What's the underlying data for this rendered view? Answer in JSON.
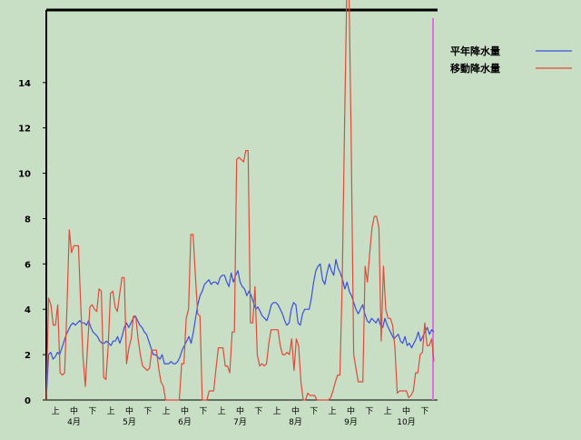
{
  "chart_data": {
    "type": "line",
    "title": "",
    "xlabel": "",
    "ylabel": "",
    "ylim": [
      0,
      17.2
    ],
    "yticks": [
      0,
      2,
      4,
      6,
      8,
      10,
      12,
      14
    ],
    "decade_labels": [
      "上",
      "中",
      "下"
    ],
    "months": [
      "4月",
      "5月",
      "6月",
      "7月",
      "8月",
      "9月",
      "10月"
    ],
    "grid": false,
    "legend_position": "top-right",
    "colors": {
      "background": "#c9dfc5",
      "axis": "#000000",
      "marker": "#e070e0"
    },
    "series": [
      {
        "name": "平年降水量",
        "color": "#3a4fe0",
        "values": [
          0,
          2.0,
          2.1,
          1.8,
          1.9,
          2.1,
          2.0,
          2.3,
          2.6,
          2.9,
          3.1,
          3.3,
          3.4,
          3.3,
          3.4,
          3.5,
          3.4,
          3.4,
          3.3,
          3.5,
          3.2,
          3.0,
          2.9,
          2.8,
          2.6,
          2.5,
          2.5,
          2.6,
          2.5,
          2.4,
          2.6,
          2.6,
          2.8,
          2.5,
          2.8,
          3.2,
          3.4,
          3.2,
          3.4,
          3.6,
          3.7,
          3.5,
          3.3,
          3.2,
          3.0,
          2.9,
          2.6,
          2.3,
          2.0,
          2.0,
          1.9,
          1.8,
          2.0,
          1.6,
          1.6,
          1.6,
          1.7,
          1.6,
          1.6,
          1.7,
          1.9,
          2.2,
          2.4,
          2.6,
          2.8,
          2.5,
          3.0,
          3.6,
          4.2,
          4.6,
          4.8,
          5.1,
          5.2,
          5.3,
          5.1,
          5.2,
          5.2,
          5.1,
          5.4,
          5.5,
          5.5,
          5.2,
          5.0,
          5.6,
          5.2,
          5.5,
          5.7,
          5.2,
          5.0,
          4.9,
          4.6,
          4.8,
          4.6,
          4.3,
          4.0,
          4.1,
          3.9,
          3.7,
          3.6,
          3.5,
          3.8,
          4.2,
          4.3,
          4.3,
          4.2,
          4.0,
          3.8,
          3.5,
          3.3,
          3.4,
          4.0,
          4.3,
          4.2,
          3.4,
          3.3,
          3.8,
          4.0,
          4.0,
          4.0,
          4.5,
          5.2,
          5.7,
          5.9,
          6.0,
          5.3,
          5.1,
          5.6,
          6.0,
          5.7,
          5.5,
          6.2,
          5.8,
          5.6,
          5.3,
          4.9,
          5.2,
          4.8,
          4.6,
          4.3,
          4.0,
          3.8,
          4.0,
          4.2,
          3.8,
          3.5,
          3.4,
          3.6,
          3.5,
          3.4,
          3.6,
          3.3,
          3.2,
          3.6,
          3.3,
          3.1,
          2.9,
          2.7,
          2.8,
          2.9,
          2.6,
          2.5,
          2.8,
          2.4,
          2.5,
          2.3,
          2.5,
          2.7,
          3.0,
          2.6,
          2.8,
          3.0,
          3.2,
          2.9,
          3.1,
          3.0
        ]
      },
      {
        "name": "移動降水量",
        "color": "#e04a3a",
        "values": [
          0,
          4.5,
          4.2,
          3.3,
          3.3,
          4.2,
          1.2,
          1.1,
          1.2,
          4.0,
          7.5,
          6.5,
          6.8,
          6.8,
          6.8,
          4.2,
          1.9,
          0.6,
          2.4,
          4.1,
          4.2,
          4.0,
          3.9,
          4.9,
          4.8,
          1.0,
          0.9,
          2.4,
          4.7,
          4.8,
          4.1,
          3.9,
          4.7,
          5.4,
          5.4,
          1.6,
          2.3,
          2.7,
          3.7,
          3.7,
          2.7,
          2.0,
          1.5,
          1.4,
          1.3,
          1.4,
          2.2,
          2.2,
          2.2,
          1.4,
          0.8,
          0.6,
          0,
          0,
          0,
          0,
          0,
          0,
          0,
          1.6,
          1.6,
          3.6,
          4.0,
          7.3,
          7.3,
          5.5,
          3.8,
          3.7,
          0,
          0,
          0,
          0.4,
          0.4,
          0.4,
          1.4,
          2.3,
          2.3,
          2.3,
          1.5,
          1.5,
          1.2,
          3.0,
          3.0,
          10.6,
          10.7,
          10.6,
          10.5,
          11.0,
          11.0,
          3.4,
          3.4,
          5.0,
          2.0,
          1.5,
          1.6,
          1.5,
          1.6,
          2.5,
          3.1,
          3.1,
          3.1,
          3.1,
          2.4,
          2.0,
          2.0,
          2.1,
          2.0,
          2.7,
          1.3,
          2.7,
          2.4,
          0.8,
          0,
          0,
          0.3,
          0.2,
          0.2,
          0.2,
          0,
          0,
          0,
          0,
          0,
          0,
          0.1,
          0.4,
          0.8,
          1.1,
          1.1,
          5.0,
          12.0,
          18.0,
          18.0,
          11.0,
          2.0,
          1.4,
          0.8,
          0.8,
          0.8,
          5.9,
          5.2,
          6.5,
          7.6,
          8.1,
          8.1,
          7.6,
          2.6,
          5.9,
          4.0,
          3.6,
          3.6,
          3.3,
          2.3,
          0.3,
          0.4,
          0.4,
          0.4,
          0.4,
          0.1,
          0.2,
          0.4,
          1.2,
          1.2,
          2.0,
          2.1,
          3.4,
          2.4,
          2.4,
          2.7,
          1.7
        ]
      }
    ]
  }
}
